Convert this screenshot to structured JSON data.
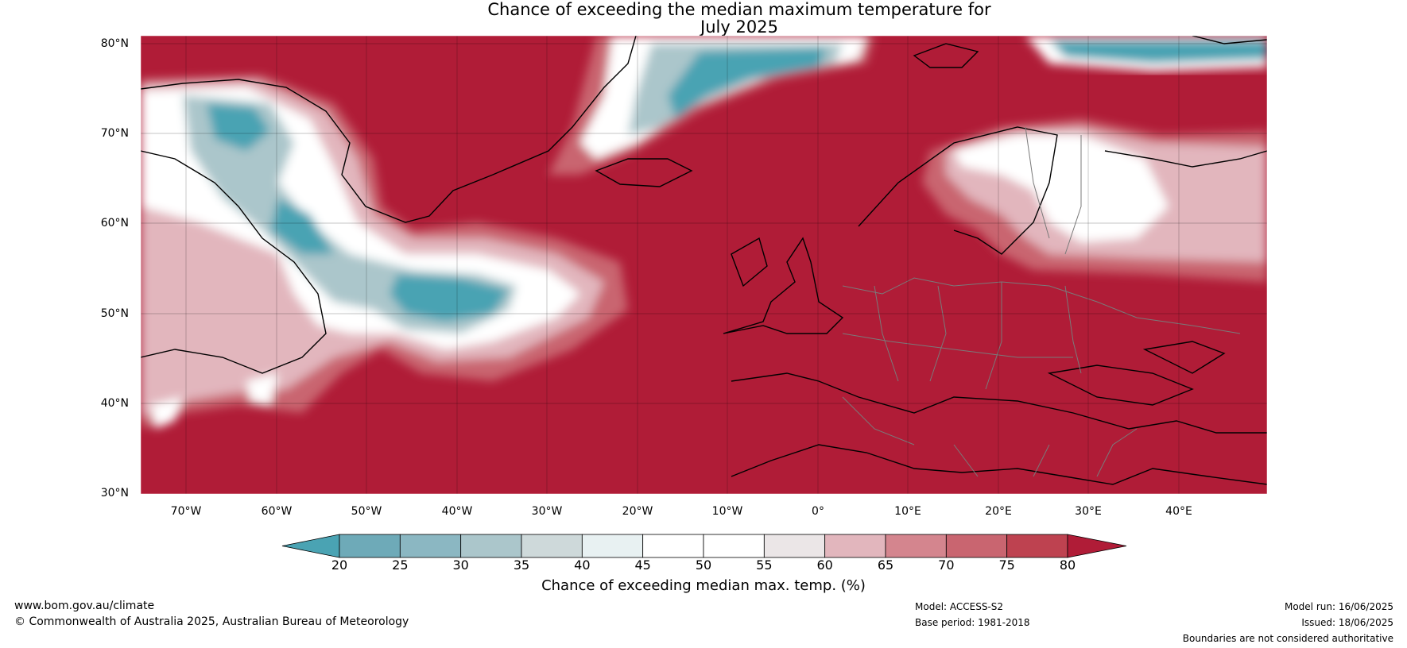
{
  "title_line1": "Chance of exceeding the median maximum temperature for",
  "title_line2": "July 2025",
  "lat_labels": [
    "80°N",
    "70°N",
    "60°N",
    "50°N",
    "40°N",
    "30°N"
  ],
  "lon_labels": [
    "70°W",
    "60°W",
    "50°W",
    "40°W",
    "30°W",
    "20°W",
    "10°W",
    "0°",
    "10°E",
    "20°E",
    "30°E",
    "40°E"
  ],
  "colorbar": {
    "ticks": [
      "20",
      "25",
      "30",
      "35",
      "40",
      "45",
      "50",
      "55",
      "60",
      "65",
      "70",
      "75",
      "80"
    ],
    "colors": [
      "#4aa3b3",
      "#6eaab8",
      "#8bb7c2",
      "#abc6cb",
      "#ced9da",
      "#e8f1f2",
      "#ffffff",
      "#ffffff",
      "#ebe6e7",
      "#e2b6bd",
      "#d4858e",
      "#c96570",
      "#be4250",
      "#b01c37"
    ],
    "label": "Chance of exceeding median max. temp. (%)"
  },
  "footer": {
    "url": "www.bom.gov.au/climate",
    "copyright": "© Commonwealth of Australia 2025, Australian Bureau of Meteorology",
    "model": "Model: ACCESS-S2",
    "base_period": "Base period: 1981-2018",
    "model_run": "Model run: 16/06/2025",
    "issued": "Issued: 18/06/2025",
    "disclaimer": "Boundaries are not considered authoritative"
  },
  "colors": {
    "high": "#b01c37",
    "mid_high": "#c96570",
    "light_pink": "#e2b6bd",
    "neutral": "#ffffff",
    "light_teal": "#abc6cb",
    "teal": "#4aa3b3",
    "land_line": "#000000",
    "border_line": "#7a7a7a"
  }
}
